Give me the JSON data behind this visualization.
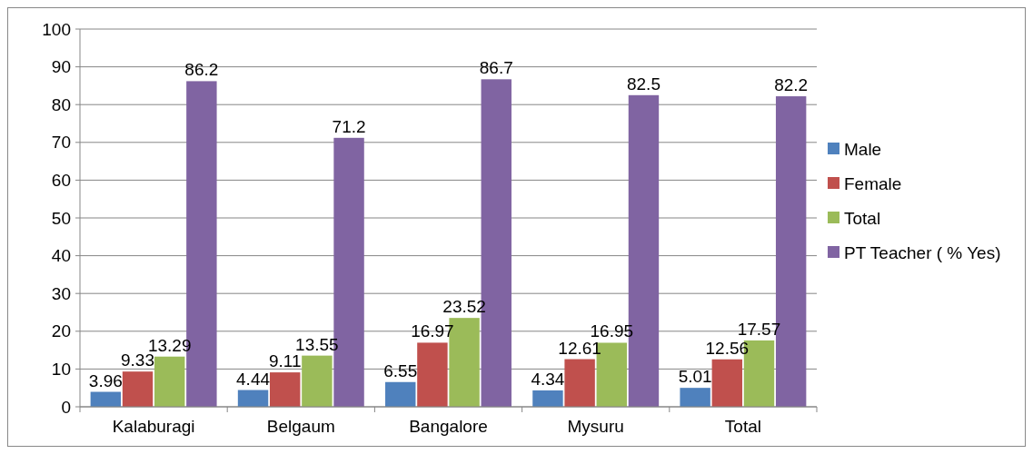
{
  "chart_data": {
    "type": "bar",
    "categories": [
      "Kalaburagi",
      "Belgaum",
      "Bangalore",
      "Mysuru",
      "Total"
    ],
    "series": [
      {
        "name": "Male",
        "color": "#4f81bd",
        "values": [
          3.96,
          4.44,
          6.55,
          4.34,
          5.01
        ]
      },
      {
        "name": "Female",
        "color": "#c0504d",
        "values": [
          9.33,
          9.11,
          16.97,
          12.61,
          12.56
        ]
      },
      {
        "name": "Total",
        "color": "#9bbb59",
        "values": [
          13.29,
          13.55,
          23.52,
          16.95,
          17.57
        ]
      },
      {
        "name": "PT Teacher ( % Yes)",
        "color": "#8064a2",
        "values": [
          86.2,
          71.2,
          86.7,
          82.5,
          82.2
        ]
      }
    ],
    "ylim": [
      0,
      100
    ],
    "yticks": [
      0,
      10,
      20,
      30,
      40,
      50,
      60,
      70,
      80,
      90,
      100
    ],
    "grid": "y",
    "legend": "right",
    "data_labels": true
  }
}
